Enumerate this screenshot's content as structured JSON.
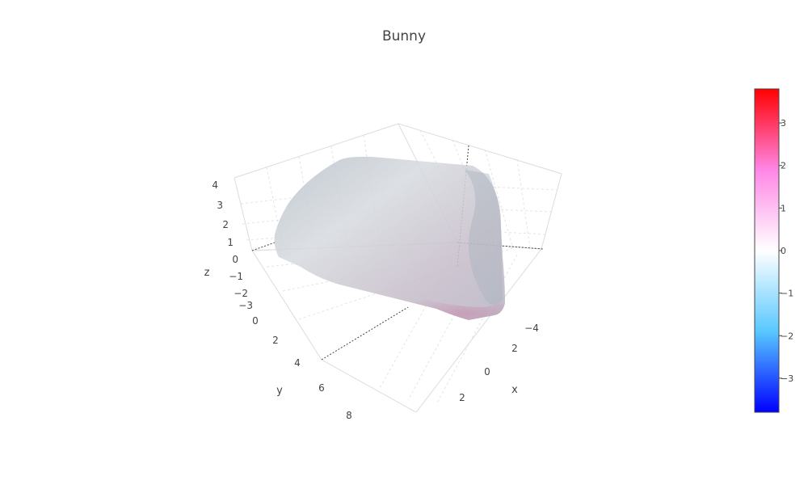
{
  "chart_data": {
    "type": "mesh3d",
    "title": "Bunny",
    "axes": {
      "x": {
        "label": "x",
        "ticks": [
          "−4",
          "2",
          "0",
          "2"
        ]
      },
      "y": {
        "label": "y",
        "ticks": [
          "0",
          "2",
          "4",
          "6",
          "8"
        ]
      },
      "z": {
        "label": "z",
        "ticks": [
          "4",
          "3",
          "2",
          "1",
          "0",
          "−1",
          "−2",
          "−3"
        ]
      }
    },
    "colorbar": {
      "range": [
        -3.8,
        3.8
      ],
      "ticks": [
        "3",
        "2",
        "1",
        "0",
        "−1",
        "−2",
        "−3"
      ],
      "tick_values": [
        3,
        2,
        1,
        0,
        -1,
        -2,
        -3
      ],
      "colorscale": [
        "#0000ff",
        "#58c8ff",
        "#ffffff",
        "#ff86e6",
        "#ff0000"
      ]
    },
    "surface_color": "#c9cfd6",
    "grid": true
  }
}
